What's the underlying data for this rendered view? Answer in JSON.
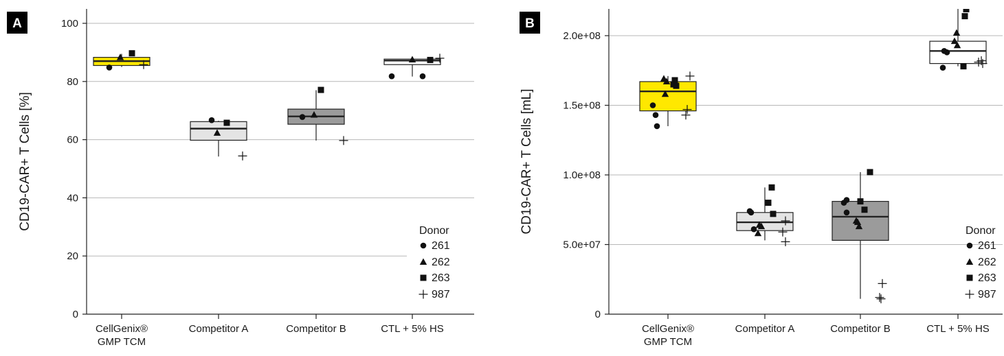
{
  "chart_data": [
    {
      "type": "box",
      "panel_label": "A",
      "ylabel": "CD19-CAR+ T Cells [%]",
      "ylim": [
        0,
        105
      ],
      "yticks": [
        0,
        20,
        40,
        60,
        80,
        100
      ],
      "ytick_labels": [
        "0",
        "20",
        "40",
        "60",
        "80",
        "100"
      ],
      "grid": true,
      "legend_position": "bottom-right",
      "categories": [
        "CellGenix® GMP TCM",
        "Competitor A",
        "Competitor B",
        "CTL + 5% HS"
      ],
      "category_labels": [
        [
          "CellGenix®",
          "GMP TCM"
        ],
        [
          "Competitor A"
        ],
        [
          "Competitor B"
        ],
        [
          "CTL + 5% HS"
        ]
      ],
      "box_colors": [
        "#ffe800",
        "#e4e4e4",
        "#9b9b9b",
        "#ffffff"
      ],
      "boxes": [
        {
          "q1": 85.5,
          "median": 87.0,
          "q3": 88.3,
          "whisker_low": 85.0,
          "whisker_high": 89.5
        },
        {
          "q1": 59.8,
          "median": 63.8,
          "q3": 66.2,
          "whisker_low": 54.2,
          "whisker_high": 66.5
        },
        {
          "q1": 65.3,
          "median": 68.0,
          "q3": 70.5,
          "whisker_low": 59.7,
          "whisker_high": 77.0
        },
        {
          "q1": 85.8,
          "median": 87.2,
          "q3": 87.7,
          "whisker_low": 81.7,
          "whisker_high": 87.8
        }
      ],
      "legend_title": "Donor",
      "series": [
        {
          "name": "261",
          "marker": "circle",
          "points": [
            {
              "c": 0,
              "dx": -0.18,
              "y": 84.8
            },
            {
              "c": 1,
              "dx": -0.1,
              "y": 66.7
            },
            {
              "c": 2,
              "dx": -0.2,
              "y": 67.8
            },
            {
              "c": 3,
              "dx": -0.3,
              "y": 81.8
            },
            {
              "c": 3,
              "dx": 0.15,
              "y": 81.8
            }
          ]
        },
        {
          "name": "262",
          "marker": "triangle",
          "points": [
            {
              "c": 0,
              "dx": -0.02,
              "y": 88.3
            },
            {
              "c": 1,
              "dx": -0.02,
              "y": 62.3
            },
            {
              "c": 2,
              "dx": -0.03,
              "y": 68.5
            },
            {
              "c": 3,
              "dx": 0.0,
              "y": 87.5
            }
          ]
        },
        {
          "name": "263",
          "marker": "square",
          "points": [
            {
              "c": 0,
              "dx": 0.15,
              "y": 89.7
            },
            {
              "c": 1,
              "dx": 0.12,
              "y": 65.8
            },
            {
              "c": 2,
              "dx": 0.07,
              "y": 77.1
            },
            {
              "c": 3,
              "dx": 0.26,
              "y": 87.4
            }
          ]
        },
        {
          "name": "987",
          "marker": "plus",
          "points": [
            {
              "c": 0,
              "dx": 0.32,
              "y": 85.8
            },
            {
              "c": 1,
              "dx": 0.35,
              "y": 54.4
            },
            {
              "c": 2,
              "dx": 0.4,
              "y": 59.7
            },
            {
              "c": 3,
              "dx": 0.4,
              "y": 88.0
            }
          ]
        }
      ]
    },
    {
      "type": "box",
      "panel_label": "B",
      "ylabel": "CD19-CAR+ T Cells [mL]",
      "ylim": [
        0,
        220000000
      ],
      "yticks": [
        0,
        50000000,
        100000000,
        150000000,
        200000000
      ],
      "ytick_labels": [
        "0",
        "5.0e+07",
        "1.0e+08",
        "1.5e+08",
        "2.0e+08"
      ],
      "grid": true,
      "legend_position": "bottom-right",
      "categories": [
        "CellGenix® GMP TCM",
        "Competitor A",
        "Competitor B",
        "CTL + 5% HS"
      ],
      "category_labels": [
        [
          "CellGenix®",
          "GMP TCM"
        ],
        [
          "Competitor A"
        ],
        [
          "Competitor B"
        ],
        [
          "CTL + 5% HS"
        ]
      ],
      "box_colors": [
        "#ffe800",
        "#e4e4e4",
        "#9b9b9b",
        "#ffffff"
      ],
      "boxes": [
        {
          "q1": 146000000,
          "median": 160000000,
          "q3": 167000000,
          "whisker_low": 135000000,
          "whisker_high": 171000000
        },
        {
          "q1": 60000000,
          "median": 66000000,
          "q3": 73000000,
          "whisker_low": 53000000,
          "whisker_high": 91000000
        },
        {
          "q1": 53000000,
          "median": 70000000,
          "q3": 81000000,
          "whisker_low": 11000000,
          "whisker_high": 102000000
        },
        {
          "q1": 180000000,
          "median": 189000000,
          "q3": 196000000,
          "whisker_low": 178000000,
          "whisker_high": 220000000
        }
      ],
      "legend_title": "Donor",
      "series": [
        {
          "name": "261",
          "marker": "circle",
          "points": [
            {
              "c": 0,
              "dx": -0.22,
              "y": 150000000
            },
            {
              "c": 0,
              "dx": -0.18,
              "y": 143000000
            },
            {
              "c": 0,
              "dx": -0.16,
              "y": 135000000
            },
            {
              "c": 1,
              "dx": -0.22,
              "y": 74000000
            },
            {
              "c": 1,
              "dx": -0.2,
              "y": 73000000
            },
            {
              "c": 1,
              "dx": -0.16,
              "y": 61000000
            },
            {
              "c": 2,
              "dx": -0.24,
              "y": 80000000
            },
            {
              "c": 2,
              "dx": -0.2,
              "y": 82000000
            },
            {
              "c": 2,
              "dx": -0.2,
              "y": 73000000
            },
            {
              "c": 3,
              "dx": -0.2,
              "y": 189000000
            },
            {
              "c": 3,
              "dx": -0.16,
              "y": 188000000
            },
            {
              "c": 3,
              "dx": -0.22,
              "y": 177000000
            }
          ]
        },
        {
          "name": "262",
          "marker": "triangle",
          "points": [
            {
              "c": 0,
              "dx": -0.06,
              "y": 169000000
            },
            {
              "c": 0,
              "dx": -0.02,
              "y": 167000000
            },
            {
              "c": 0,
              "dx": -0.04,
              "y": 158000000
            },
            {
              "c": 1,
              "dx": -0.08,
              "y": 64000000
            },
            {
              "c": 1,
              "dx": -0.05,
              "y": 63000000
            },
            {
              "c": 1,
              "dx": -0.1,
              "y": 58000000
            },
            {
              "c": 2,
              "dx": -0.06,
              "y": 67000000
            },
            {
              "c": 2,
              "dx": -0.04,
              "y": 66000000
            },
            {
              "c": 2,
              "dx": -0.02,
              "y": 63000000
            },
            {
              "c": 3,
              "dx": -0.02,
              "y": 202000000
            },
            {
              "c": 3,
              "dx": -0.05,
              "y": 196000000
            },
            {
              "c": 3,
              "dx": -0.01,
              "y": 193000000
            }
          ]
        },
        {
          "name": "263",
          "marker": "square",
          "points": [
            {
              "c": 0,
              "dx": 0.1,
              "y": 168000000
            },
            {
              "c": 0,
              "dx": 0.08,
              "y": 165000000
            },
            {
              "c": 0,
              "dx": 0.12,
              "y": 164000000
            },
            {
              "c": 1,
              "dx": 0.1,
              "y": 91000000
            },
            {
              "c": 1,
              "dx": 0.05,
              "y": 80000000
            },
            {
              "c": 1,
              "dx": 0.12,
              "y": 72000000
            },
            {
              "c": 2,
              "dx": 0.14,
              "y": 102000000
            },
            {
              "c": 2,
              "dx": 0.0,
              "y": 81000000
            },
            {
              "c": 2,
              "dx": 0.06,
              "y": 75000000
            },
            {
              "c": 3,
              "dx": 0.12,
              "y": 219000000
            },
            {
              "c": 3,
              "dx": 0.1,
              "y": 214000000
            },
            {
              "c": 3,
              "dx": 0.08,
              "y": 178000000
            }
          ]
        },
        {
          "name": "987",
          "marker": "plus",
          "points": [
            {
              "c": 0,
              "dx": 0.32,
              "y": 171000000
            },
            {
              "c": 0,
              "dx": 0.28,
              "y": 147000000
            },
            {
              "c": 0,
              "dx": 0.26,
              "y": 143000000
            },
            {
              "c": 1,
              "dx": 0.3,
              "y": 67000000
            },
            {
              "c": 1,
              "dx": 0.26,
              "y": 59000000
            },
            {
              "c": 1,
              "dx": 0.3,
              "y": 52000000
            },
            {
              "c": 2,
              "dx": 0.32,
              "y": 22000000
            },
            {
              "c": 2,
              "dx": 0.28,
              "y": 12000000
            },
            {
              "c": 2,
              "dx": 0.3,
              "y": 11000000
            },
            {
              "c": 3,
              "dx": 0.34,
              "y": 182000000
            },
            {
              "c": 3,
              "dx": 0.3,
              "y": 181000000
            },
            {
              "c": 3,
              "dx": 0.36,
              "y": 180000000
            }
          ]
        }
      ]
    }
  ]
}
